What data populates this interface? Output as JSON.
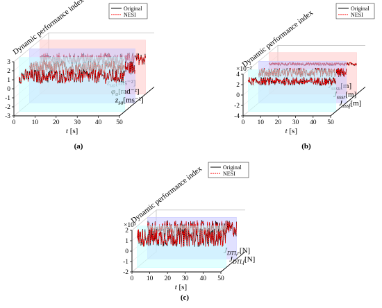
{
  "panels": [
    {
      "id": "a",
      "panel_label": "(a)",
      "zlabel": "Dynamic performance index",
      "xlabel": "t [s]",
      "x_ticks": [
        "0",
        "10",
        "20",
        "30",
        "40",
        "50"
      ],
      "y_ticks": [
        "-3",
        "-2",
        "-1",
        "0",
        "1",
        "2",
        "3"
      ],
      "multiplier": "",
      "depth_labels": [
        {
          "sym": "z",
          "sub": "ua",
          "unit": "[ms⁻²]"
        },
        {
          "sym": "φ",
          "sub": "u",
          "unit": "[rad⁻²]"
        },
        {
          "sym": "z",
          "sub": "sa",
          "unit": "[ms⁻²]"
        }
      ],
      "legend": [
        "Original",
        "NESI"
      ]
    },
    {
      "id": "b",
      "panel_label": "(b)",
      "zlabel": "Dynamic performance index",
      "xlabel": "t [s]",
      "x_ticks": [
        "0",
        "10",
        "20",
        "30",
        "40",
        "50"
      ],
      "y_ticks": [
        "-4",
        "-2",
        "0",
        "2",
        "4"
      ],
      "multiplier": "×10⁻²",
      "depth_labels": [
        {
          "sym": "J",
          "sub": "sssu",
          "unit": "[m]"
        },
        {
          "sym": "J",
          "sub": "sssr",
          "unit": "[m]"
        },
        {
          "sym": "J",
          "sub": "sssf",
          "unit": "[m]"
        }
      ],
      "legend": [
        "Original",
        "NESI"
      ]
    },
    {
      "id": "c",
      "panel_label": "(c)",
      "zlabel": "Dynamic performance index",
      "xlabel": "t [s]",
      "x_ticks": [
        "0",
        "10",
        "20",
        "30",
        "40",
        "50"
      ],
      "y_ticks": [
        "-2",
        "-1",
        "0",
        "1",
        "2"
      ],
      "multiplier": "×10³",
      "depth_labels": [
        {
          "sym": "J",
          "sub": "DTI,r",
          "unit": "[N]"
        },
        {
          "sym": "J",
          "sub": "DTI,f",
          "unit": "[N]"
        }
      ],
      "legend": [
        "Original",
        "NESI"
      ]
    }
  ],
  "chart_data": [
    {
      "panel": "a",
      "type": "line",
      "x_range": [
        0,
        50
      ],
      "y_range": [
        -3,
        3
      ],
      "series": [
        {
          "name": "Original",
          "color": "#000000",
          "style": "solid"
        },
        {
          "name": "NESI",
          "color": "#ff0000",
          "style": "dashed"
        }
      ],
      "signals": [
        {
          "label": "z_ua",
          "center": 0.9,
          "amplitude": 0.7
        },
        {
          "label": "φ_u",
          "center": 0.9,
          "amplitude": 0.8
        },
        {
          "label": "z_sa",
          "center": 0.9,
          "amplitude": 0.8
        }
      ],
      "plane_colors": [
        "#ffc8c8",
        "#c8c8ff",
        "#c8ffff"
      ]
    },
    {
      "panel": "b",
      "type": "line",
      "x_range": [
        0,
        50
      ],
      "y_range": [
        -4,
        4
      ],
      "series": [
        {
          "name": "Original",
          "color": "#000000",
          "style": "solid"
        },
        {
          "name": "NESI",
          "color": "#ff0000",
          "style": "dashed"
        }
      ],
      "signals": [
        {
          "label": "J_sssu",
          "center": 1.8,
          "amplitude": 0.3
        },
        {
          "label": "J_sssr",
          "center": 1.8,
          "amplitude": 0.9
        },
        {
          "label": "J_sssf",
          "center": 1.8,
          "amplitude": 0.8
        }
      ],
      "plane_colors": [
        "#ffc8c8",
        "#c8c8ff",
        "#c8ffff"
      ]
    },
    {
      "panel": "c",
      "type": "line",
      "x_range": [
        0,
        50
      ],
      "y_range": [
        -2,
        2
      ],
      "series": [
        {
          "name": "Original",
          "color": "#000000",
          "style": "solid"
        },
        {
          "name": "NESI",
          "color": "#ff0000",
          "style": "dashed"
        }
      ],
      "signals": [
        {
          "label": "J_DTI,r",
          "center": 0.9,
          "amplitude": 0.8
        },
        {
          "label": "J_DTI,f",
          "center": 0.9,
          "amplitude": 0.9
        }
      ],
      "plane_colors": [
        "#c8c8ff",
        "#c8ffff"
      ]
    }
  ]
}
